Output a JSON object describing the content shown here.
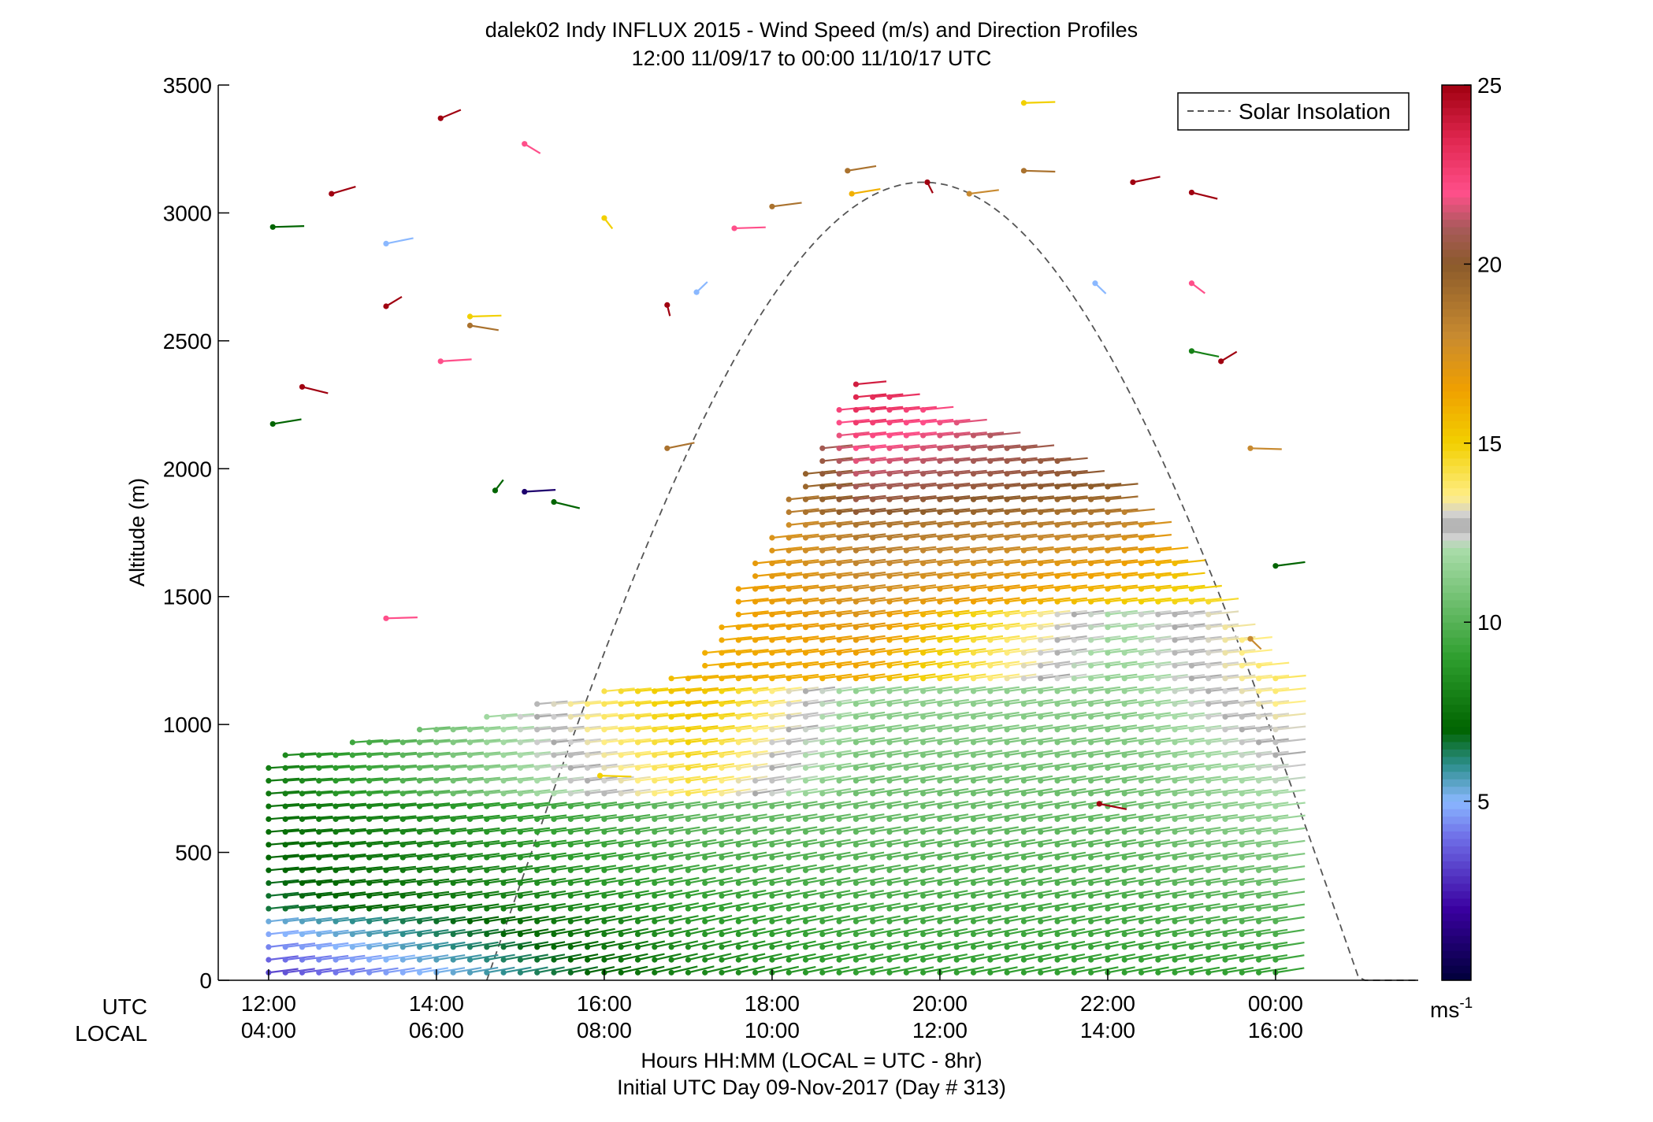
{
  "chart_data": {
    "type": "scatter",
    "title": "dalek02 Indy INFLUX 2015 - Wind Speed (m/s) and Direction Profiles",
    "subtitle": "12:00 11/09/17 to 00:00 11/10/17  UTC",
    "ylabel": "Altitude (m)",
    "xlabel": "Hours HH:MM  (LOCAL = UTC - 8hr)",
    "xlabel2": "Initial UTC Day 09-Nov-2017 (Day # 313)",
    "xlim_hours": [
      11.4,
      25.7
    ],
    "ylim": [
      0,
      3500
    ],
    "y_ticks": [
      0,
      500,
      1000,
      1500,
      2000,
      2500,
      3000,
      3500
    ],
    "x_ticks": [
      {
        "hour": 12,
        "utc": "12:00",
        "local": "04:00"
      },
      {
        "hour": 14,
        "utc": "14:00",
        "local": "06:00"
      },
      {
        "hour": 16,
        "utc": "16:00",
        "local": "08:00"
      },
      {
        "hour": 18,
        "utc": "18:00",
        "local": "10:00"
      },
      {
        "hour": 20,
        "utc": "20:00",
        "local": "12:00"
      },
      {
        "hour": 22,
        "utc": "22:00",
        "local": "14:00"
      },
      {
        "hour": 24,
        "utc": "00:00",
        "local": "16:00"
      }
    ],
    "utc_row_label": "UTC",
    "local_row_label": "LOCAL",
    "legend": {
      "entry": "Solar Insolation",
      "placement": "top-right"
    },
    "solar_insolation": {
      "start_hour": 14.6,
      "end_hour": 25.7,
      "peak_hour": 19.8,
      "peak_altitude": 3120,
      "style": "dashed"
    },
    "colorbar": {
      "min": 0,
      "max": 25,
      "ticks": [
        5,
        10,
        15,
        20,
        25
      ],
      "unit": "ms",
      "unit_exponent": "-1",
      "stops": [
        {
          "v": 0,
          "c": "#00003a"
        },
        {
          "v": 2,
          "c": "#3a00a0"
        },
        {
          "v": 4,
          "c": "#6f6fe8"
        },
        {
          "v": 5,
          "c": "#8ab8ff"
        },
        {
          "v": 6,
          "c": "#2e8f8f"
        },
        {
          "v": 7,
          "c": "#006400"
        },
        {
          "v": 9,
          "c": "#2e9e2e"
        },
        {
          "v": 12,
          "c": "#a8dca8"
        },
        {
          "v": 12.4,
          "c": "#d0d0d0"
        },
        {
          "v": 12.7,
          "c": "#a8a8a8"
        },
        {
          "v": 13,
          "c": "#d0d0d0"
        },
        {
          "v": 13.5,
          "c": "#ffee88"
        },
        {
          "v": 15,
          "c": "#f2d000"
        },
        {
          "v": 16.5,
          "c": "#f0a000"
        },
        {
          "v": 18,
          "c": "#c88a30"
        },
        {
          "v": 20,
          "c": "#8b5a2b"
        },
        {
          "v": 21,
          "c": "#a85a5a"
        },
        {
          "v": 22,
          "c": "#ff4f8a"
        },
        {
          "v": 23.5,
          "c": "#e0264f"
        },
        {
          "v": 25,
          "c": "#a00010"
        }
      ]
    },
    "profiles": [
      {
        "t": 12.0,
        "regions": [
          {
            "min_alt": 0,
            "max_alt": 250,
            "speed_bottom": 3,
            "speed_top": 5.5
          },
          {
            "min_alt": 250,
            "max_alt": 870,
            "speed_bottom": 6.5,
            "speed_top": 8
          }
        ],
        "dir_bottom": 250,
        "dir_top": 260
      },
      {
        "t": 17.0,
        "regions": [
          {
            "min_alt": 0,
            "max_alt": 700,
            "speed_bottom": 8,
            "speed_top": 10.5
          },
          {
            "min_alt": 700,
            "max_alt": 1200,
            "speed_bottom": 14,
            "speed_top": 16
          }
        ],
        "dir_bottom": 235,
        "dir_top": 255
      },
      {
        "t": 19.0,
        "regions": [
          {
            "min_alt": 0,
            "max_alt": 1150,
            "speed_bottom": 9,
            "speed_top": 11.5
          },
          {
            "min_alt": 1150,
            "max_alt": 1800,
            "speed_bottom": 16,
            "speed_top": 19
          },
          {
            "min_alt": 1800,
            "max_alt": 2350,
            "speed_bottom": 20,
            "speed_top": 24
          }
        ],
        "dir_bottom": 240,
        "dir_top": 255
      },
      {
        "t": 22.0,
        "regions": [
          {
            "min_alt": 0,
            "max_alt": 1450,
            "speed_bottom": 9,
            "speed_top": 12
          },
          {
            "min_alt": 1450,
            "max_alt": 1950,
            "speed_bottom": 15,
            "speed_top": 20
          }
        ],
        "dir_bottom": 240,
        "dir_top": 255
      },
      {
        "t": 24.0,
        "regions": [
          {
            "min_alt": 0,
            "max_alt": 1200,
            "speed_bottom": 9,
            "speed_top": 14
          }
        ],
        "dir_bottom": 245,
        "dir_top": 255
      }
    ],
    "scattered_barbs": [
      {
        "t": 12.05,
        "alt": 2945,
        "speed": 7,
        "dir": 265
      },
      {
        "t": 12.75,
        "alt": 3075,
        "speed": 25,
        "dir": 230
      },
      {
        "t": 13.4,
        "alt": 2880,
        "speed": 5,
        "dir": 240
      },
      {
        "t": 14.05,
        "alt": 3370,
        "speed": 25,
        "dir": 220
      },
      {
        "t": 15.05,
        "alt": 3270,
        "speed": 22,
        "dir": 330
      },
      {
        "t": 16.0,
        "alt": 2980,
        "speed": 15,
        "dir": 345
      },
      {
        "t": 17.1,
        "alt": 2690,
        "speed": 5,
        "dir": 200
      },
      {
        "t": 17.55,
        "alt": 2940,
        "speed": 22,
        "dir": 265
      },
      {
        "t": 18.0,
        "alt": 3025,
        "speed": 19,
        "dir": 250
      },
      {
        "t": 18.9,
        "alt": 3165,
        "speed": 19,
        "dir": 245
      },
      {
        "t": 18.95,
        "alt": 3075,
        "speed": 16,
        "dir": 245
      },
      {
        "t": 19.85,
        "alt": 3120,
        "speed": 25,
        "dir": 350
      },
      {
        "t": 20.35,
        "alt": 3075,
        "speed": 18,
        "dir": 250
      },
      {
        "t": 21.0,
        "alt": 3430,
        "speed": 15,
        "dir": 265
      },
      {
        "t": 21.0,
        "alt": 3165,
        "speed": 19,
        "dir": 275
      },
      {
        "t": 22.3,
        "alt": 3120,
        "speed": 25,
        "dir": 240
      },
      {
        "t": 23.0,
        "alt": 3080,
        "speed": 25,
        "dir": 305
      },
      {
        "t": 21.85,
        "alt": 2725,
        "speed": 5,
        "dir": 340
      },
      {
        "t": 23.0,
        "alt": 2725,
        "speed": 22,
        "dir": 335
      },
      {
        "t": 23.0,
        "alt": 2460,
        "speed": 8,
        "dir": 300
      },
      {
        "t": 23.35,
        "alt": 2420,
        "speed": 25,
        "dir": 210
      },
      {
        "t": 12.05,
        "alt": 2175,
        "speed": 7,
        "dir": 245
      },
      {
        "t": 12.4,
        "alt": 2320,
        "speed": 25,
        "dir": 305
      },
      {
        "t": 13.4,
        "alt": 2635,
        "speed": 25,
        "dir": 210
      },
      {
        "t": 14.05,
        "alt": 2420,
        "speed": 22,
        "dir": 260
      },
      {
        "t": 14.4,
        "alt": 2595,
        "speed": 15,
        "dir": 265
      },
      {
        "t": 14.4,
        "alt": 2560,
        "speed": 19,
        "dir": 295
      },
      {
        "t": 16.75,
        "alt": 2640,
        "speed": 25,
        "dir": 355
      },
      {
        "t": 16.75,
        "alt": 2080,
        "speed": 19,
        "dir": 240
      },
      {
        "t": 15.05,
        "alt": 1910,
        "speed": 1,
        "dir": 260
      },
      {
        "t": 15.4,
        "alt": 1870,
        "speed": 7,
        "dir": 305
      },
      {
        "t": 14.7,
        "alt": 1915,
        "speed": 7,
        "dir": 195
      },
      {
        "t": 13.4,
        "alt": 1415,
        "speed": 22,
        "dir": 265
      },
      {
        "t": 23.7,
        "alt": 2080,
        "speed": 18,
        "dir": 275
      },
      {
        "t": 24.0,
        "alt": 1620,
        "speed": 7,
        "dir": 250
      },
      {
        "t": 23.7,
        "alt": 1335,
        "speed": 18,
        "dir": 340
      },
      {
        "t": 15.95,
        "alt": 800,
        "speed": 15,
        "dir": 275
      },
      {
        "t": 21.9,
        "alt": 690,
        "speed": 25,
        "dir": 300
      }
    ]
  }
}
